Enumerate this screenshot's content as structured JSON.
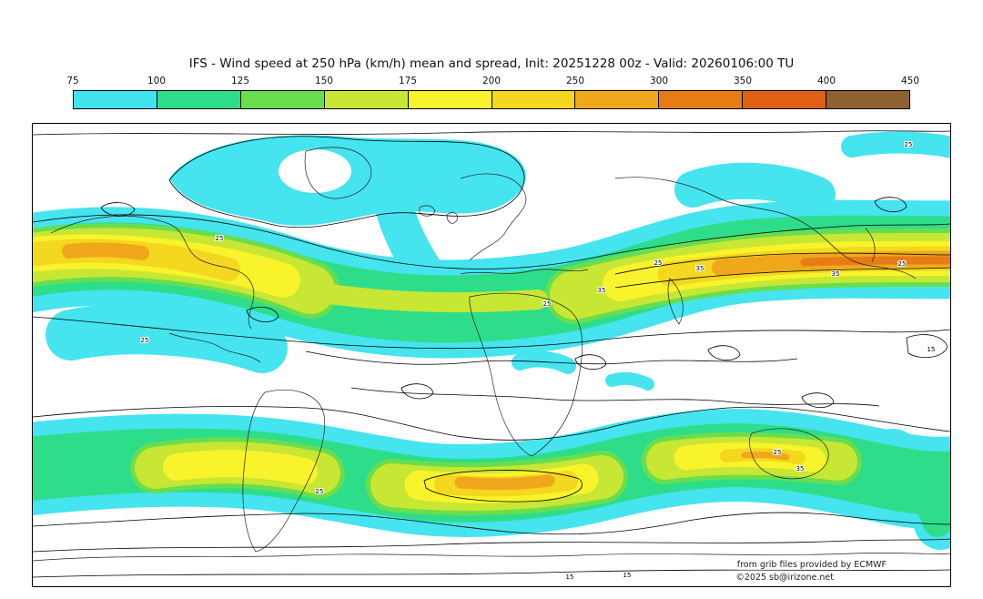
{
  "title": "IFS - Wind speed at 250 hPa (km/h) mean and spread, Init: 20251228 00z - Valid: 20260106:00 TU",
  "colorbar": {
    "tick_labels": [
      "75",
      "100",
      "125",
      "150",
      "175",
      "200",
      "250",
      "300",
      "350",
      "400",
      "450"
    ],
    "segment_colors": [
      "#40e2ee",
      "#2edd8a",
      "#68de4f",
      "#c8e634",
      "#f9f32b",
      "#f4d71f",
      "#f0a71c",
      "#e77c17",
      "#de5f15",
      "#8f6130"
    ]
  },
  "map": {
    "contour_labels": {
      "spread_25": "25",
      "spread_35": "35",
      "spread_15": "15"
    },
    "attribution_line1": "from grib files provided by ECMWF",
    "attribution_line2": "©2025 sb@irizone.net"
  },
  "chart_data": {
    "type": "heatmap",
    "title": "IFS - Wind speed at 250 hPa (km/h) mean and spread",
    "init": "20251228 00z",
    "valid": "20260106:00 TU",
    "units": "km/h",
    "colorbar_levels": [
      75,
      100,
      125,
      150,
      175,
      200,
      250,
      300,
      350,
      400,
      450
    ],
    "spread_contour_levels": [
      15,
      25,
      35
    ],
    "legend_position": "top"
  }
}
